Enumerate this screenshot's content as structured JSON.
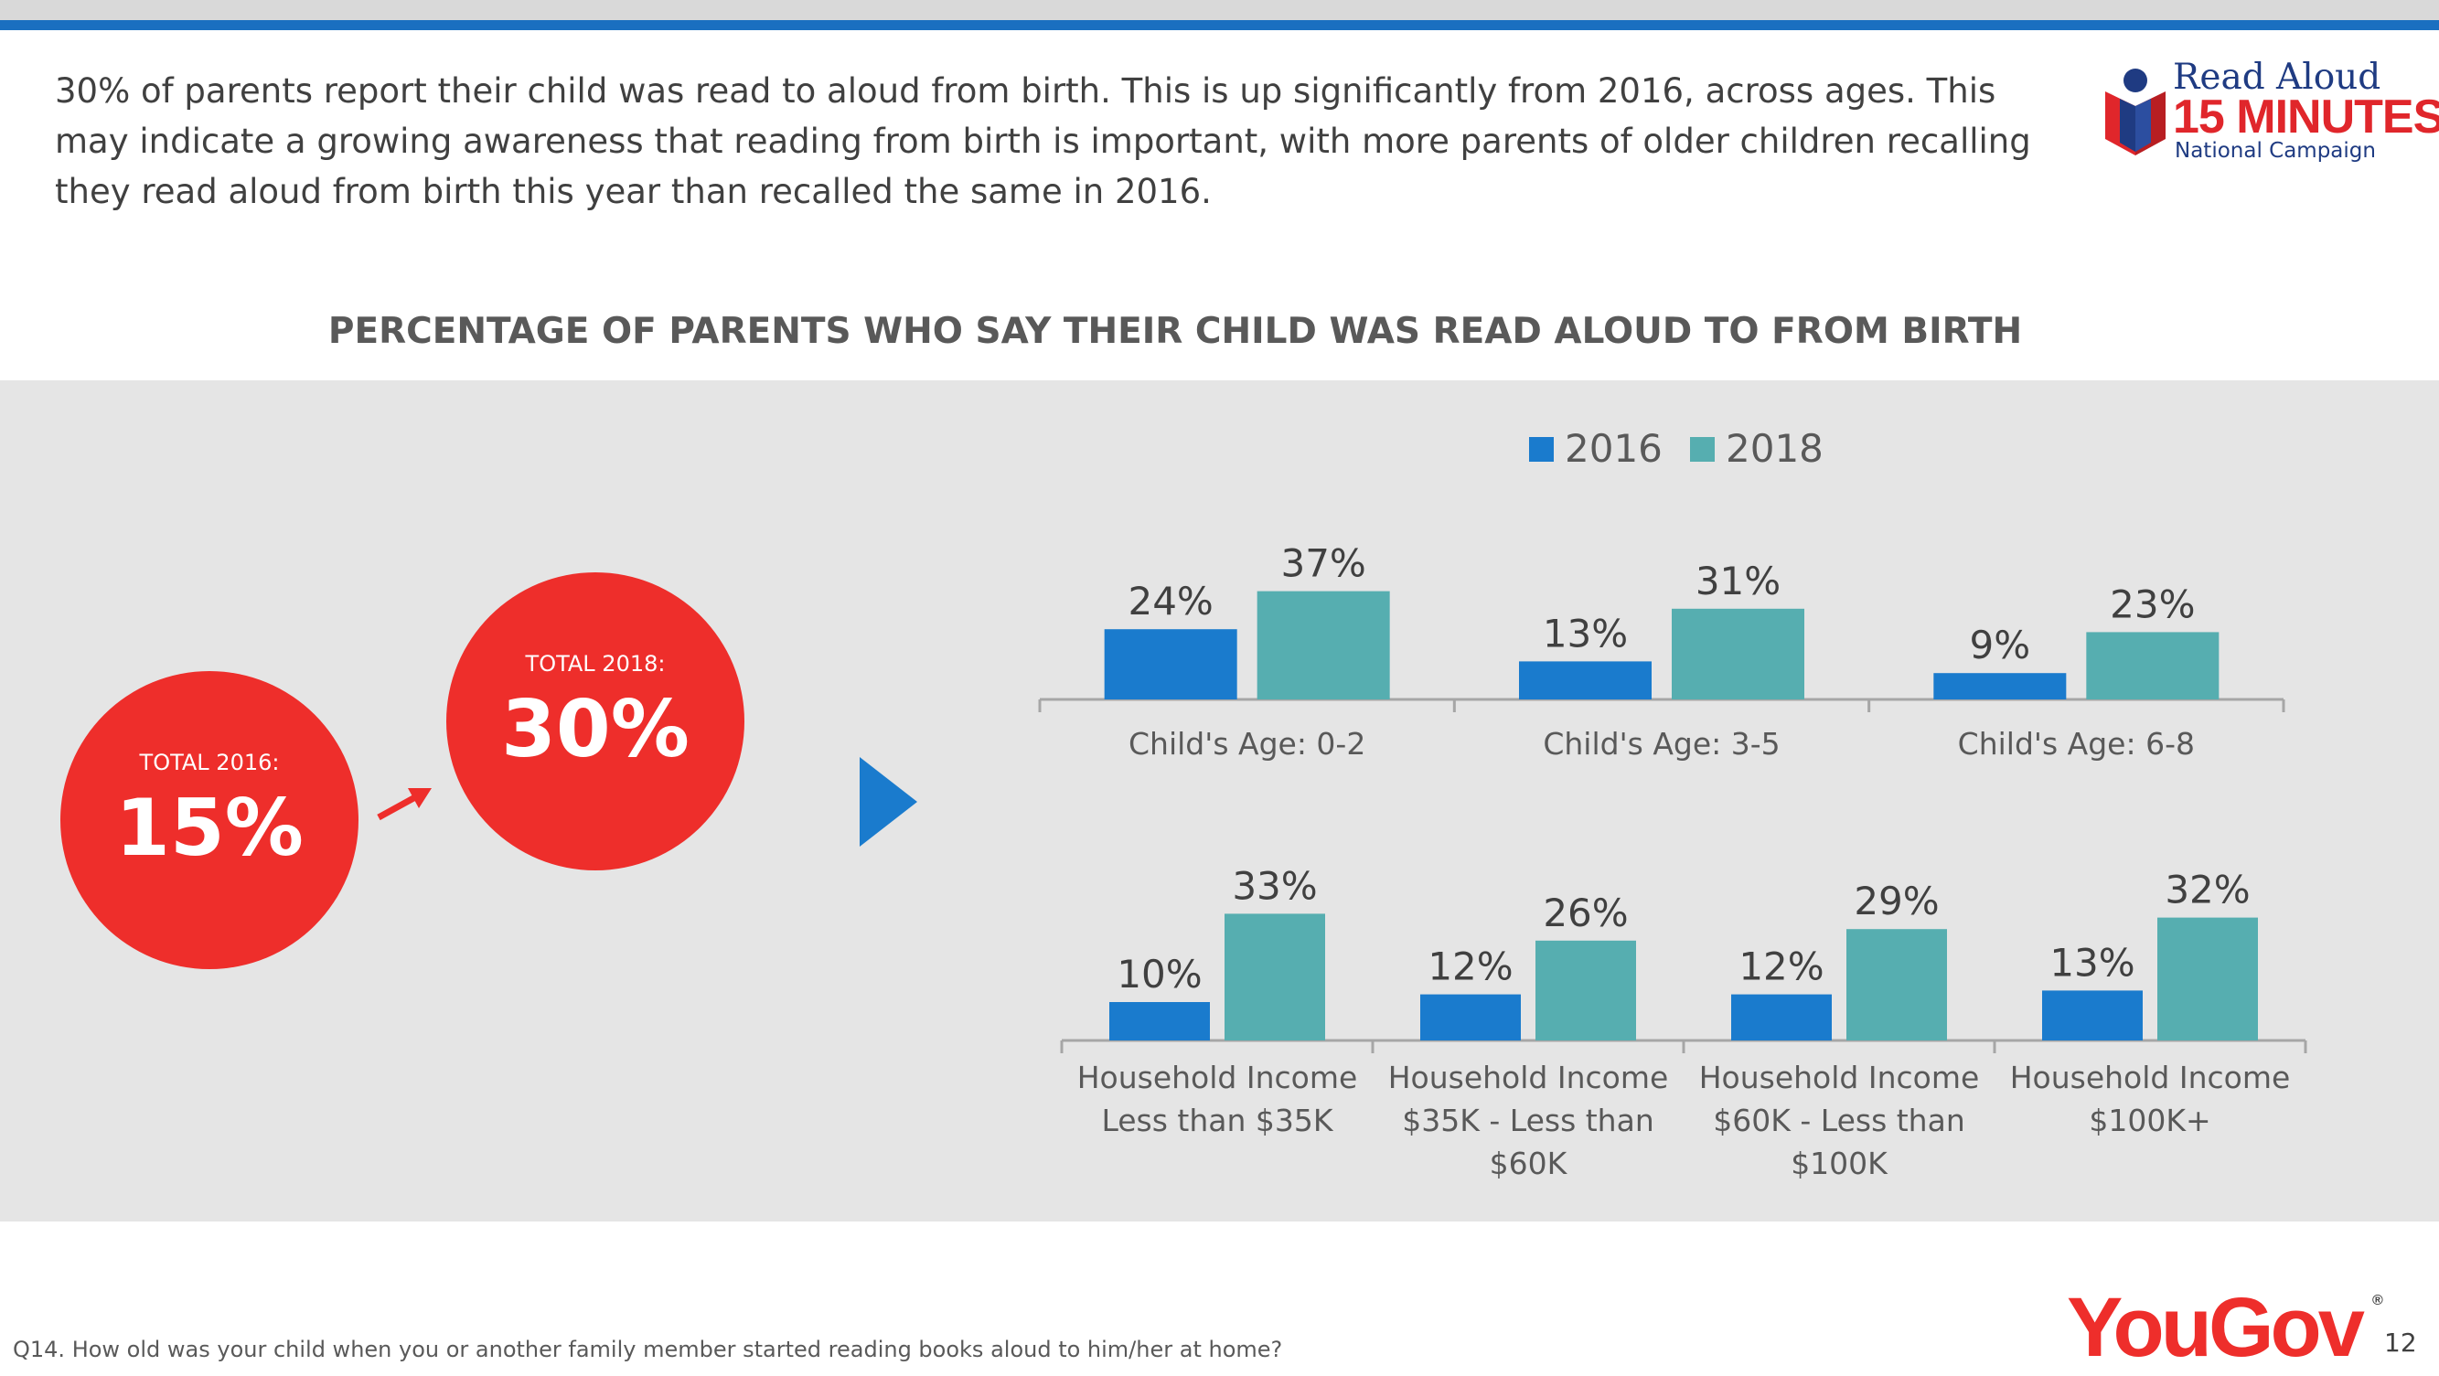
{
  "intro_text": "30% of parents report their child was read to aloud from birth. This is up significantly from 2016, across ages. This may indicate a growing awareness that reading from birth is important, with more parents of older children recalling they read aloud from birth this year than recalled the same in 2016.",
  "logo": {
    "line1": "Read Aloud",
    "line2": "15 MINUTES",
    "line3": "National Campaign"
  },
  "totals": {
    "y2016": {
      "label": "TOTAL 2016:",
      "value": "15%"
    },
    "y2018": {
      "label": "TOTAL 2018:",
      "value": "30%"
    }
  },
  "colors": {
    "series_2016": "#1a7bcd",
    "series_2018": "#56aeb0",
    "accent_red": "#ee2e2b",
    "panel": "#e5e5e5"
  },
  "chart_data": [
    {
      "type": "bar",
      "title": "PERCENTAGE OF PARENTS WHO SAY THEIR CHILD WAS READ ALOUD TO FROM BIRTH",
      "legend": {
        "position": "top",
        "entries": [
          "2016",
          "2018"
        ]
      },
      "categories": [
        "Child's Age: 0-2",
        "Child's Age: 3-5",
        "Child's Age: 6-8"
      ],
      "series": [
        {
          "name": "2016",
          "values": [
            24,
            13,
            9
          ],
          "labels": [
            "24%",
            "13%",
            "9%"
          ]
        },
        {
          "name": "2018",
          "values": [
            37,
            31,
            23
          ],
          "labels": [
            "37%",
            "31%",
            "23%"
          ]
        }
      ],
      "ylim": [
        0,
        40
      ],
      "grid": false
    },
    {
      "type": "bar",
      "categories": [
        [
          "Household Income",
          "Less than $35K"
        ],
        [
          "Household Income",
          "$35K - Less than",
          "$60K"
        ],
        [
          "Household Income",
          "$60K - Less than",
          "$100K"
        ],
        [
          "Household Income",
          "$100K+"
        ]
      ],
      "series": [
        {
          "name": "2016",
          "values": [
            10,
            12,
            12,
            13
          ],
          "labels": [
            "10%",
            "12%",
            "12%",
            "13%"
          ]
        },
        {
          "name": "2018",
          "values": [
            33,
            26,
            29,
            32
          ],
          "labels": [
            "33%",
            "26%",
            "29%",
            "32%"
          ]
        }
      ],
      "ylim": [
        0,
        40
      ],
      "grid": false
    }
  ],
  "footnote": "Q14. How old was your child when you or another family member started reading books aloud to him/her at home?",
  "brand": {
    "you": "You",
    "gov": "Gov",
    "reg": "®"
  },
  "page_number": "12"
}
